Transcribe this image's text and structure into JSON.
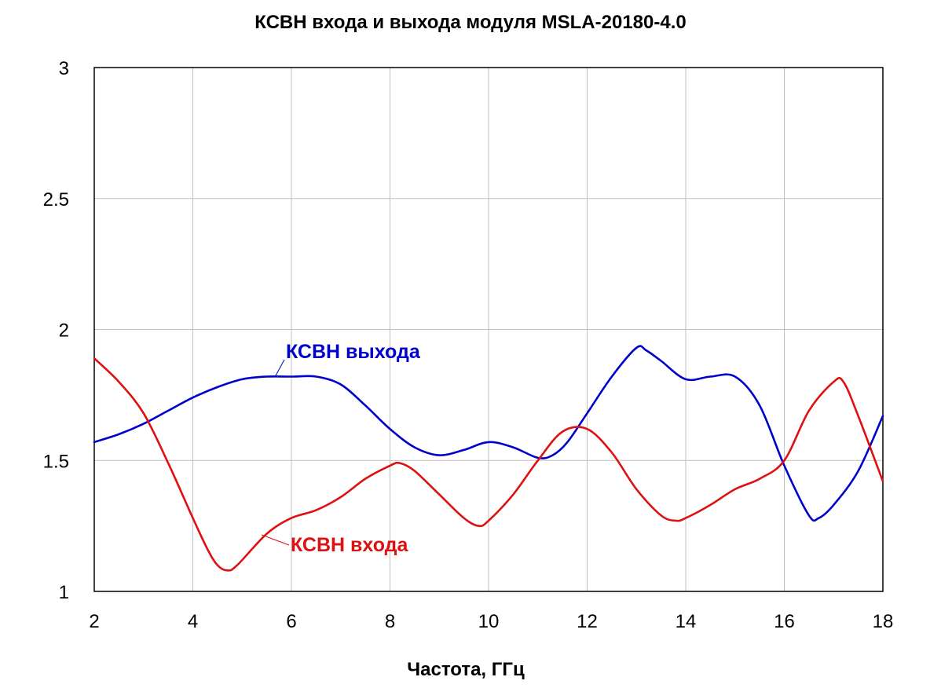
{
  "chart_data": {
    "type": "line",
    "title": "КСВН входа и выхода модуля MSLA-20180-4.0",
    "xlabel": "Частота, ГГц",
    "ylabel": "",
    "xlim": [
      2,
      18
    ],
    "ylim": [
      1,
      3
    ],
    "x_ticks": [
      2,
      4,
      6,
      8,
      10,
      12,
      14,
      16,
      18
    ],
    "y_ticks": [
      1,
      1.5,
      2,
      2.5,
      3
    ],
    "x_tick_labels": [
      "2",
      "4",
      "6",
      "8",
      "10",
      "12",
      "14",
      "16",
      "18"
    ],
    "y_tick_labels": [
      "1",
      "1.5",
      "2",
      "2.5",
      "3"
    ],
    "grid": true,
    "legend": "inline labels on the curves",
    "series": [
      {
        "name": "КСВН выхода",
        "color": "#0000cc",
        "x": [
          2.0,
          2.5,
          3.0,
          3.5,
          4.0,
          4.5,
          5.0,
          5.5,
          6.0,
          6.5,
          7.0,
          7.5,
          8.0,
          8.5,
          9.0,
          9.5,
          10.0,
          10.5,
          11.0,
          11.3,
          11.6,
          12.0,
          12.5,
          13.0,
          13.2,
          13.5,
          14.0,
          14.5,
          15.0,
          15.5,
          16.0,
          16.5,
          16.7,
          17.0,
          17.5,
          18.0
        ],
        "y": [
          1.57,
          1.6,
          1.64,
          1.69,
          1.74,
          1.78,
          1.81,
          1.82,
          1.82,
          1.82,
          1.79,
          1.71,
          1.62,
          1.55,
          1.52,
          1.54,
          1.57,
          1.55,
          1.51,
          1.52,
          1.57,
          1.68,
          1.82,
          1.93,
          1.92,
          1.88,
          1.81,
          1.82,
          1.82,
          1.71,
          1.48,
          1.29,
          1.28,
          1.33,
          1.46,
          1.67
        ]
      },
      {
        "name": "КСВН входа",
        "color": "#dd1111",
        "x": [
          2.0,
          2.5,
          3.0,
          3.5,
          4.0,
          4.3,
          4.5,
          4.7,
          4.9,
          5.5,
          6.0,
          6.5,
          7.0,
          7.5,
          8.0,
          8.2,
          8.5,
          9.0,
          9.5,
          9.8,
          10.0,
          10.5,
          11.0,
          11.5,
          12.0,
          12.5,
          13.0,
          13.5,
          13.8,
          14.0,
          14.5,
          15.0,
          15.5,
          16.0,
          16.5,
          17.0,
          17.2,
          17.5,
          18.0
        ],
        "y": [
          1.89,
          1.8,
          1.68,
          1.49,
          1.28,
          1.16,
          1.1,
          1.08,
          1.1,
          1.22,
          1.28,
          1.31,
          1.36,
          1.43,
          1.48,
          1.49,
          1.46,
          1.37,
          1.28,
          1.25,
          1.27,
          1.37,
          1.5,
          1.61,
          1.62,
          1.53,
          1.39,
          1.29,
          1.27,
          1.28,
          1.33,
          1.39,
          1.43,
          1.5,
          1.69,
          1.8,
          1.8,
          1.67,
          1.42
        ]
      }
    ],
    "annotations": [
      {
        "text": "КСВН выхода",
        "color": "#0000cc"
      },
      {
        "text": "КСВН входа",
        "color": "#dd1111"
      }
    ]
  }
}
